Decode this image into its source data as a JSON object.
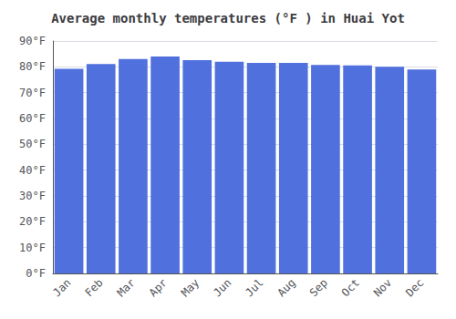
{
  "chart_data": {
    "type": "bar",
    "title": "Average monthly temperatures (°F ) in Huai Yot",
    "categories": [
      "Jan",
      "Feb",
      "Mar",
      "Apr",
      "May",
      "Jun",
      "Jul",
      "Aug",
      "Sep",
      "Oct",
      "Nov",
      "Dec"
    ],
    "values": [
      79.2,
      81.1,
      83.0,
      84.0,
      82.6,
      82.0,
      81.5,
      81.5,
      80.7,
      80.6,
      80.0,
      79.0
    ],
    "ylim": [
      0,
      90
    ],
    "yticks": [
      {
        "value": 0,
        "label": "0°F"
      },
      {
        "value": 10,
        "label": "10°F"
      },
      {
        "value": 20,
        "label": "20°F"
      },
      {
        "value": 30,
        "label": "30°F"
      },
      {
        "value": 40,
        "label": "40°F"
      },
      {
        "value": 50,
        "label": "50°F"
      },
      {
        "value": 60,
        "label": "60°F"
      },
      {
        "value": 70,
        "label": "70°F"
      },
      {
        "value": 80,
        "label": "80°F"
      },
      {
        "value": 90,
        "label": "90°F"
      }
    ],
    "grid": true
  }
}
